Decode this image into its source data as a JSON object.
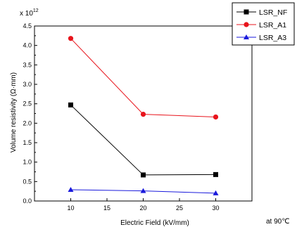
{
  "chart_data": {
    "type": "line",
    "xlabel": "Electric Field (kV/mm)",
    "ylabel": "Volume resistivity (Ω·mm)",
    "multiplier": "x 10",
    "multiplier_exp": "12",
    "annotation": "at 90℃",
    "x": [
      10,
      20,
      30
    ],
    "xlim": [
      5,
      35
    ],
    "ylim": [
      0,
      4.5
    ],
    "xticks": [
      10,
      15,
      20,
      25,
      30
    ],
    "yticks": [
      0.0,
      0.5,
      1.0,
      1.5,
      2.0,
      2.5,
      3.0,
      3.5,
      4.0,
      4.5
    ],
    "legend_position": "top-right",
    "series": [
      {
        "name": "LSR_NF",
        "values": [
          2.47,
          0.67,
          0.68
        ],
        "color": "#000000",
        "marker": "square"
      },
      {
        "name": "LSR_A1",
        "values": [
          4.18,
          2.23,
          2.16
        ],
        "color": "#e8141c",
        "marker": "circle"
      },
      {
        "name": "LSR_A3",
        "values": [
          0.29,
          0.26,
          0.2
        ],
        "color": "#1a1adc",
        "marker": "triangle"
      }
    ]
  }
}
